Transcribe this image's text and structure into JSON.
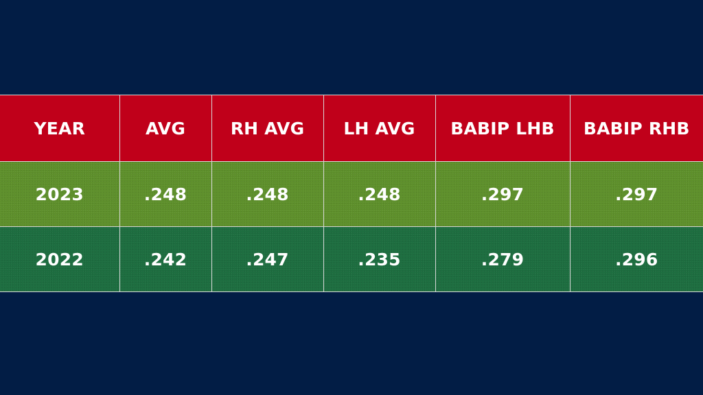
{
  "colors": {
    "background": "#021d45",
    "header": "#c0001a",
    "row_2023": "#5d8f2a",
    "row_2022": "#1c6d3f",
    "text": "#ffffff",
    "gridlines": "#d9d9d9"
  },
  "table": {
    "headers": [
      "YEAR",
      "AVG",
      "RH AVG",
      "LH AVG",
      "BABIP LHB",
      "BABIP RHB"
    ],
    "rows": [
      [
        "2023",
        ".248",
        ".248",
        ".248",
        ".297",
        ".297"
      ],
      [
        "2022",
        ".242",
        ".247",
        ".235",
        ".279",
        ".296"
      ]
    ]
  }
}
